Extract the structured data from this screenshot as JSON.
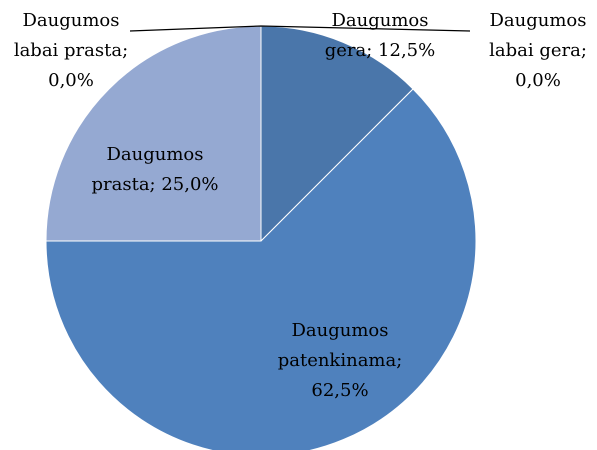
{
  "chart_data": {
    "type": "pie",
    "values": [
      0.0,
      12.5,
      62.5,
      25.0,
      0.0
    ],
    "value_labels": [
      [
        "Daugumos",
        "labai gera;",
        "0,0%"
      ],
      [
        "Daugumos",
        "gera; 12,5%"
      ],
      [
        "Daugumos",
        "patenkinama;",
        "62,5%"
      ],
      [
        "Daugumos",
        "prasta; 25,0%"
      ],
      [
        "Daugumos",
        "labai prasta;",
        "0,0%"
      ]
    ],
    "colors": [
      "#3f6a9e",
      "#4a76aa",
      "#4f81bd",
      "#95a9d2",
      "#b9c7e3"
    ]
  }
}
